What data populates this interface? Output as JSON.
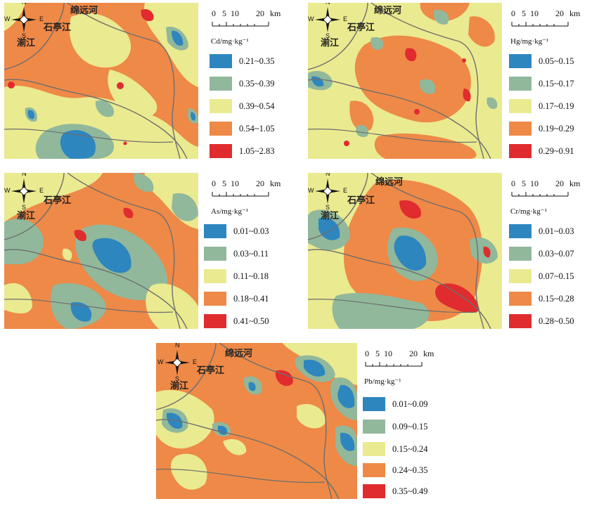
{
  "places": {
    "river": "绵远河",
    "town": "石亭江",
    "county": "湔江"
  },
  "compass": {
    "n": "N",
    "s": "S",
    "e": "E",
    "w": "W"
  },
  "scale": {
    "t0": "0",
    "t1": "5",
    "t2": "10",
    "t3": "20",
    "unit": "km"
  },
  "colors": {
    "c1": "#2e86bf",
    "c2": "#91b89b",
    "c3": "#eaea90",
    "c4": "#ee8947",
    "c5": "#e02c2e",
    "road": "#6e6e6e"
  },
  "panels": [
    {
      "id": "cd",
      "unit": "Cd/mg·kg⁻¹",
      "classes": [
        "0.21~0.35",
        "0.35~0.39",
        "0.39~0.54",
        "0.54~1.05",
        "1.05~2.83"
      ]
    },
    {
      "id": "hg",
      "unit": "Hg/mg·kg⁻¹",
      "classes": [
        "0.05~0.15",
        "0.15~0.17",
        "0.17~0.19",
        "0.19~0.29",
        "0.29~0.91"
      ]
    },
    {
      "id": "as",
      "unit": "As/mg·kg⁻¹",
      "classes": [
        "0.01~0.03",
        "0.03~0.11",
        "0.11~0.18",
        "0.18~0.41",
        "0.41~0.50"
      ]
    },
    {
      "id": "cr",
      "unit": "Cr/mg·kg⁻¹",
      "classes": [
        "0.01~0.03",
        "0.03~0.07",
        "0.07~0.15",
        "0.15~0.28",
        "0.28~0.50"
      ]
    },
    {
      "id": "pb",
      "unit": "Pb/mg·kg⁻¹",
      "classes": [
        "0.01~0.09",
        "0.09~0.15",
        "0.15~0.24",
        "0.24~0.35",
        "0.35~0.49"
      ]
    }
  ]
}
